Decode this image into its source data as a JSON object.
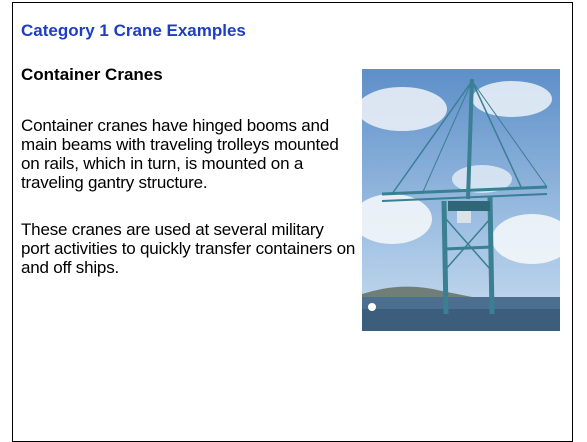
{
  "header": {
    "title": "Category 1 Crane Examples"
  },
  "section": {
    "heading": "Container Cranes",
    "paragraphs": [
      "Container cranes have hinged booms and main beams with traveling trolleys mounted on rails, which in turn, is mounted on a traveling gantry structure.",
      "These cranes are used at several military port activities to quickly transfer containers on and off ships."
    ]
  }
}
